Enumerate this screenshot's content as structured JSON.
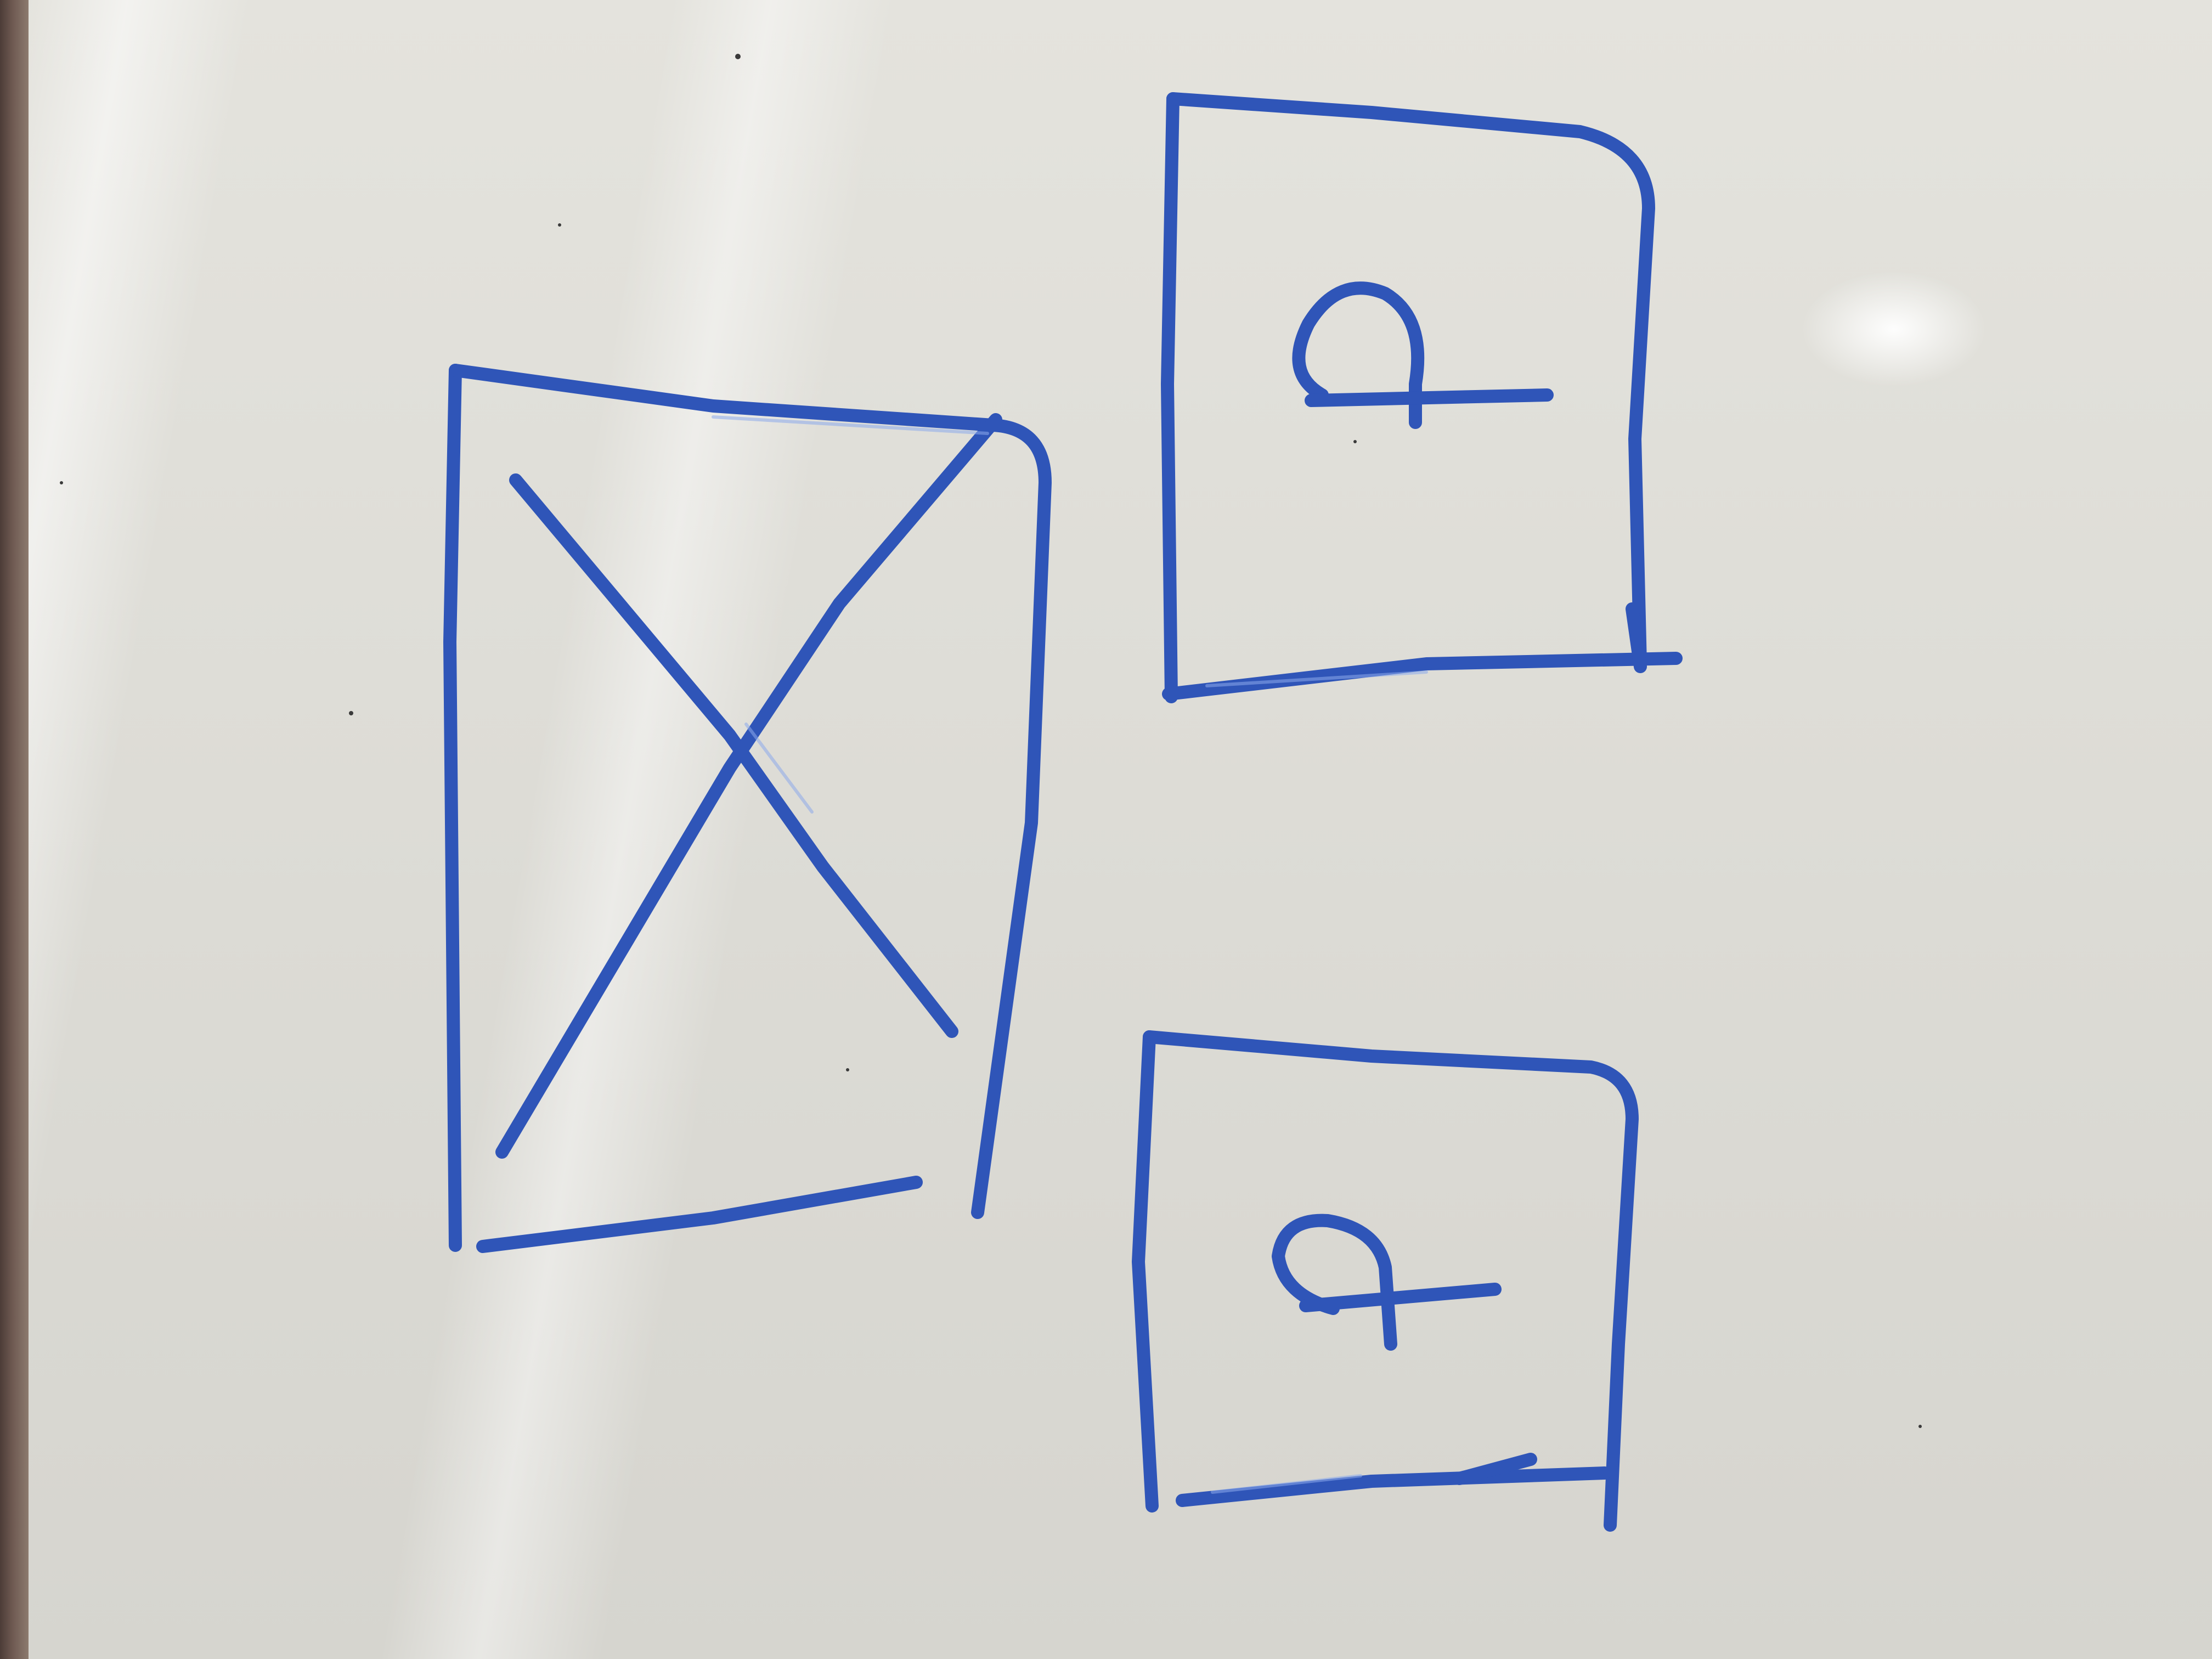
{
  "scene": {
    "description_visible_text": "",
    "colors": {
      "board": "#dcdbd5",
      "marker_ink": "#2f55b8",
      "frame": "#6f5a52"
    },
    "sketch": {
      "placeholder_box_icon": "crossed-rectangle-icon",
      "card_top_icon": "square-with-loop-symbol-icon",
      "card_bottom_icon": "square-with-loop-symbol-icon"
    }
  }
}
